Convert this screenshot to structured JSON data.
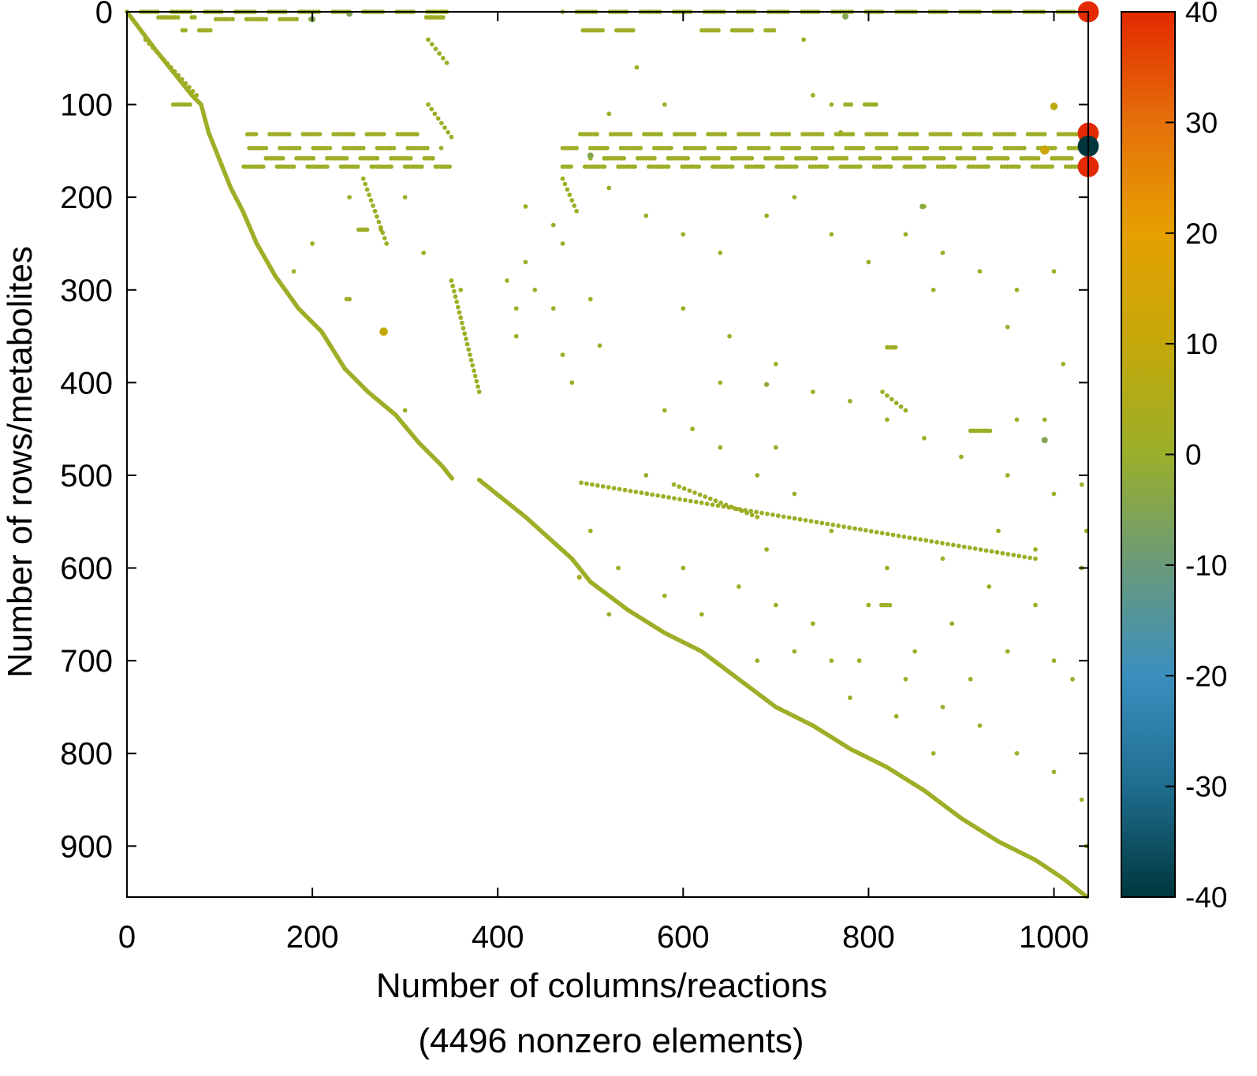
{
  "chart_data": {
    "type": "scatter",
    "subtype": "sparsity-pattern",
    "xlabel": "Number of columns/reactions",
    "xlabel2": "(4496 nonzero elements)",
    "ylabel": "Number of rows/metabolites",
    "xlim": [
      0,
      1037
    ],
    "ylim": [
      955,
      0
    ],
    "y_reversed": true,
    "xticks": [
      0,
      200,
      400,
      600,
      800,
      1000
    ],
    "yticks": [
      0,
      100,
      200,
      300,
      400,
      500,
      600,
      700,
      800,
      900
    ],
    "grid": false,
    "colorbar": {
      "range": [
        -40,
        40
      ],
      "ticks": [
        40,
        30,
        20,
        10,
        0,
        -10,
        -20,
        -30,
        -40
      ],
      "colormap": [
        "#00373d",
        "#1f6d8f",
        "#3a8fbf",
        "#6a9a7a",
        "#9aaf2a",
        "#c4a80a",
        "#e6a000",
        "#e5700a",
        "#e32a00"
      ],
      "placement": "right"
    },
    "default_value": 1,
    "diagonal_boundary": [
      [
        0,
        0
      ],
      [
        15,
        20
      ],
      [
        30,
        40
      ],
      [
        50,
        65
      ],
      [
        70,
        90
      ],
      [
        80,
        100
      ],
      [
        88,
        130
      ],
      [
        100,
        160
      ],
      [
        112,
        190
      ],
      [
        125,
        215
      ],
      [
        140,
        250
      ],
      [
        160,
        285
      ],
      [
        185,
        320
      ],
      [
        210,
        345
      ],
      [
        235,
        385
      ],
      [
        260,
        410
      ],
      [
        290,
        435
      ],
      [
        315,
        465
      ],
      [
        340,
        490
      ],
      [
        352,
        505
      ],
      [
        380,
        505
      ],
      [
        430,
        545
      ],
      [
        480,
        590
      ],
      [
        500,
        615
      ],
      [
        540,
        645
      ],
      [
        580,
        670
      ],
      [
        620,
        690
      ],
      [
        660,
        720
      ],
      [
        700,
        750
      ],
      [
        740,
        770
      ],
      [
        780,
        795
      ],
      [
        820,
        815
      ],
      [
        860,
        840
      ],
      [
        900,
        870
      ],
      [
        940,
        895
      ],
      [
        980,
        915
      ],
      [
        1010,
        935
      ],
      [
        1037,
        956
      ]
    ],
    "row_segments": [
      {
        "y": 0,
        "x": [
          0,
          350
        ]
      },
      {
        "y": 0,
        "x": [
          470,
          1037
        ]
      },
      {
        "y": 6,
        "x": [
          25,
          75
        ]
      },
      {
        "y": 6,
        "x": [
          320,
          345
        ]
      },
      {
        "y": 8,
        "x": [
          90,
          200
        ]
      },
      {
        "y": 20,
        "x": [
          60,
          90
        ]
      },
      {
        "y": 20,
        "x": [
          480,
          560
        ]
      },
      {
        "y": 20,
        "x": [
          620,
          700
        ]
      },
      {
        "y": 100,
        "x": [
          50,
          75
        ]
      },
      {
        "y": 100,
        "x": [
          775,
          810
        ]
      },
      {
        "y": 132,
        "x": [
          130,
          320
        ]
      },
      {
        "y": 132,
        "x": [
          480,
          1030
        ]
      },
      {
        "y": 147,
        "x": [
          120,
          340
        ]
      },
      {
        "y": 147,
        "x": [
          470,
          1030
        ]
      },
      {
        "y": 158,
        "x": [
          150,
          330
        ]
      },
      {
        "y": 158,
        "x": [
          500,
          1020
        ]
      },
      {
        "y": 167,
        "x": [
          120,
          350
        ]
      },
      {
        "y": 167,
        "x": [
          470,
          1030
        ]
      },
      {
        "y": 235,
        "x": [
          250,
          275
        ]
      },
      {
        "y": 310,
        "x": [
          225,
          240
        ]
      },
      {
        "y": 362,
        "x": [
          820,
          835
        ]
      },
      {
        "y": 640,
        "x": [
          805,
          825
        ]
      },
      {
        "y": 452,
        "x": [
          910,
          935
        ]
      }
    ],
    "line_segments": [
      {
        "from": [
          490,
          508
        ],
        "to": [
          980,
          590
        ]
      },
      {
        "from": [
          590,
          510
        ],
        "to": [
          680,
          545
        ]
      },
      {
        "from": [
          325,
          100
        ],
        "to": [
          350,
          135
        ]
      },
      {
        "from": [
          325,
          30
        ],
        "to": [
          345,
          55
        ]
      },
      {
        "from": [
          350,
          290
        ],
        "to": [
          380,
          410
        ]
      },
      {
        "from": [
          470,
          180
        ],
        "to": [
          485,
          215
        ]
      },
      {
        "from": [
          255,
          180
        ],
        "to": [
          280,
          250
        ]
      },
      {
        "from": [
          815,
          410
        ],
        "to": [
          840,
          430
        ]
      },
      {
        "from": [
          20,
          30
        ],
        "to": [
          75,
          90
        ]
      }
    ],
    "points": [
      [
        430,
        210,
        1
      ],
      [
        460,
        230,
        1
      ],
      [
        470,
        250,
        1
      ],
      [
        430,
        270,
        1
      ],
      [
        410,
        290,
        1
      ],
      [
        440,
        300,
        1
      ],
      [
        420,
        320,
        1
      ],
      [
        460,
        320,
        1
      ],
      [
        500,
        310,
        1
      ],
      [
        420,
        350,
        1
      ],
      [
        470,
        370,
        1
      ],
      [
        510,
        360,
        1
      ],
      [
        480,
        400,
        1
      ],
      [
        360,
        300,
        1
      ],
      [
        540,
        20,
        1
      ],
      [
        550,
        60,
        1
      ],
      [
        580,
        100,
        1
      ],
      [
        520,
        110,
        1
      ],
      [
        740,
        90,
        1
      ],
      [
        760,
        100,
        1
      ],
      [
        770,
        130,
        1
      ],
      [
        730,
        30,
        1
      ],
      [
        520,
        190,
        1
      ],
      [
        560,
        220,
        1
      ],
      [
        600,
        240,
        1
      ],
      [
        640,
        260,
        1
      ],
      [
        690,
        220,
        1
      ],
      [
        720,
        200,
        1
      ],
      [
        760,
        240,
        1
      ],
      [
        800,
        270,
        1
      ],
      [
        840,
        240,
        1
      ],
      [
        880,
        260,
        1
      ],
      [
        920,
        280,
        1
      ],
      [
        960,
        300,
        1
      ],
      [
        1000,
        280,
        1
      ],
      [
        600,
        320,
        1
      ],
      [
        650,
        350,
        1
      ],
      [
        700,
        380,
        1
      ],
      [
        740,
        410,
        1
      ],
      [
        780,
        420,
        1
      ],
      [
        820,
        440,
        1
      ],
      [
        860,
        460,
        1
      ],
      [
        900,
        480,
        1
      ],
      [
        950,
        500,
        1
      ],
      [
        1000,
        520,
        1
      ],
      [
        580,
        430,
        1
      ],
      [
        610,
        450,
        1
      ],
      [
        640,
        470,
        1
      ],
      [
        680,
        500,
        1
      ],
      [
        720,
        520,
        1
      ],
      [
        500,
        560,
        1
      ],
      [
        530,
        600,
        1
      ],
      [
        580,
        630,
        1
      ],
      [
        620,
        650,
        1
      ],
      [
        660,
        620,
        1
      ],
      [
        700,
        640,
        1
      ],
      [
        740,
        660,
        1
      ],
      [
        790,
        700,
        1
      ],
      [
        840,
        720,
        1
      ],
      [
        880,
        750,
        1
      ],
      [
        920,
        770,
        1
      ],
      [
        960,
        800,
        1
      ],
      [
        1000,
        820,
        1
      ],
      [
        1030,
        850,
        1
      ],
      [
        1035,
        900,
        1
      ],
      [
        1020,
        720,
        1
      ],
      [
        980,
        640,
        1
      ],
      [
        930,
        620,
        1
      ],
      [
        890,
        660,
        1
      ],
      [
        850,
        690,
        1
      ],
      [
        800,
        640,
        1
      ],
      [
        760,
        700,
        1
      ],
      [
        720,
        690,
        1
      ],
      [
        690,
        580,
        1
      ],
      [
        760,
        560,
        1
      ],
      [
        820,
        600,
        1
      ],
      [
        880,
        590,
        1
      ],
      [
        940,
        560,
        1
      ],
      [
        980,
        580,
        1
      ],
      [
        1030,
        600,
        1
      ],
      [
        1030,
        510,
        1
      ],
      [
        1035,
        560,
        1
      ],
      [
        700,
        470,
        1
      ],
      [
        300,
        430,
        1
      ],
      [
        200,
        250,
        1
      ],
      [
        180,
        280,
        1
      ],
      [
        240,
        200,
        1
      ],
      [
        300,
        200,
        1
      ],
      [
        320,
        260,
        1
      ],
      [
        860,
        210,
        1
      ],
      [
        870,
        300,
        1
      ],
      [
        950,
        340,
        1
      ],
      [
        1010,
        380,
        1
      ],
      [
        990,
        440,
        1
      ],
      [
        960,
        440,
        1
      ],
      [
        640,
        400,
        1
      ],
      [
        560,
        500,
        1
      ],
      [
        910,
        720,
        1
      ],
      [
        870,
        800,
        1
      ],
      [
        950,
        690,
        1
      ],
      [
        1000,
        700,
        1
      ],
      [
        830,
        760,
        1
      ],
      [
        780,
        740,
        1
      ],
      [
        680,
        700,
        1
      ],
      [
        600,
        600,
        1
      ],
      [
        520,
        650,
        1
      ],
      [
        1000,
        102,
        8
      ],
      [
        990,
        149,
        12
      ],
      [
        277,
        345,
        10
      ],
      [
        990,
        462,
        -5
      ],
      [
        500,
        155,
        -5
      ],
      [
        200,
        8,
        -5
      ],
      [
        240,
        2,
        -5
      ],
      [
        775,
        5,
        -5
      ],
      [
        858,
        210,
        -3
      ],
      [
        690,
        402,
        -2
      ],
      [
        488,
        610,
        2
      ],
      [
        1037,
        0,
        40
      ],
      [
        1037,
        131,
        40
      ],
      [
        1037,
        145,
        -40
      ],
      [
        1037,
        167,
        40
      ]
    ]
  }
}
